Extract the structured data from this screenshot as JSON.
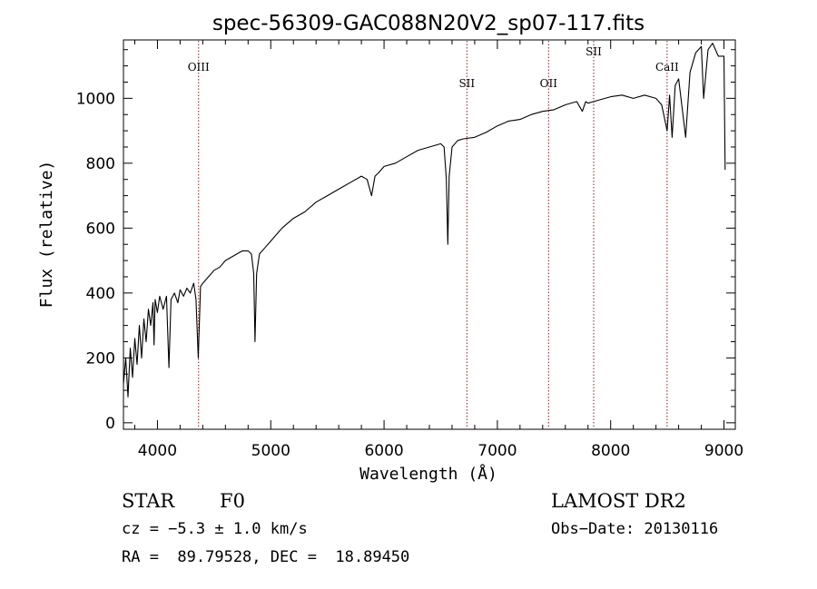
{
  "chart_data": {
    "type": "line",
    "title": "spec-56309-GAC088N20V2_sp07-117.fits",
    "xlabel": "Wavelength (Å)",
    "ylabel": "Flux (relative)",
    "xlim": [
      3700,
      9100
    ],
    "ylim": [
      -20,
      1180
    ],
    "xticks": [
      4000,
      5000,
      6000,
      7000,
      8000,
      9000
    ],
    "yticks": [
      0,
      200,
      400,
      600,
      800,
      1000
    ],
    "grid": false,
    "legend": "none",
    "line_color": "#000000",
    "marker_color": "#8b1a1a",
    "series": [
      {
        "x": [
          3700,
          3720,
          3740,
          3760,
          3780,
          3800,
          3820,
          3840,
          3860,
          3880,
          3900,
          3920,
          3940,
          3960,
          3970,
          3980,
          4000,
          4020,
          4050,
          4080,
          4101,
          4120,
          4150,
          4180,
          4200,
          4230,
          4260,
          4290,
          4320,
          4340,
          4360,
          4380,
          4400,
          4450,
          4500,
          4550,
          4600,
          4650,
          4700,
          4750,
          4800,
          4830,
          4850,
          4861,
          4875,
          4900,
          4950,
          5000,
          5100,
          5200,
          5300,
          5400,
          5500,
          5600,
          5700,
          5800,
          5850,
          5890,
          5920,
          5950,
          6000,
          6100,
          6200,
          6300,
          6400,
          6500,
          6530,
          6550,
          6563,
          6575,
          6600,
          6650,
          6700,
          6800,
          6900,
          7000,
          7100,
          7200,
          7300,
          7400,
          7500,
          7600,
          7700,
          7750,
          7780,
          7800,
          7850,
          7900,
          8000,
          8100,
          8200,
          8300,
          8400,
          8450,
          8498,
          8520,
          8542,
          8570,
          8600,
          8662,
          8700,
          8750,
          8800,
          8820,
          8860,
          8900,
          8950,
          8980,
          9000,
          9010
        ],
        "y": [
          120,
          200,
          80,
          230,
          140,
          260,
          180,
          300,
          200,
          320,
          250,
          350,
          300,
          370,
          240,
          380,
          340,
          390,
          350,
          390,
          170,
          380,
          400,
          370,
          410,
          390,
          415,
          400,
          430,
          380,
          200,
          420,
          430,
          450,
          470,
          480,
          500,
          510,
          520,
          530,
          530,
          520,
          460,
          250,
          460,
          520,
          540,
          560,
          600,
          630,
          650,
          680,
          700,
          720,
          740,
          760,
          750,
          700,
          760,
          770,
          790,
          800,
          820,
          840,
          850,
          860,
          850,
          750,
          550,
          760,
          850,
          870,
          875,
          880,
          895,
          915,
          930,
          935,
          950,
          960,
          965,
          980,
          990,
          960,
          990,
          985,
          990,
          995,
          1005,
          1010,
          1000,
          1010,
          1000,
          980,
          900,
          1010,
          880,
          1040,
          1060,
          880,
          1080,
          1140,
          1160,
          1000,
          1150,
          1170,
          1130,
          1130,
          1130,
          780
        ]
      }
    ],
    "lines": [
      {
        "x": 4363,
        "label": "OIII"
      },
      {
        "x": 6731,
        "label": "SII"
      },
      {
        "x": 7452,
        "label": "OII"
      },
      {
        "x": 7850,
        "label": "SII"
      },
      {
        "x": 8498,
        "label": "CaII"
      }
    ]
  },
  "footer": {
    "object_type": "STAR",
    "subclass": "F0",
    "survey": "LAMOST DR2",
    "cz": "cz = −5.3 ± 1.0 km/s",
    "obs_date": "Obs−Date: 20130116",
    "coords": "RA =  89.79528, DEC =  18.89450"
  }
}
